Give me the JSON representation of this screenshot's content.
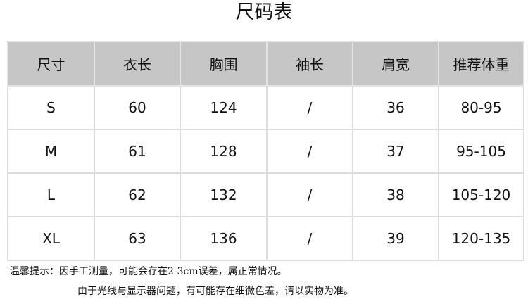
{
  "title": "尺码表",
  "table": {
    "headers": [
      "尺寸",
      "衣长",
      "胸围",
      "袖长",
      "肩宽",
      "推荐体重"
    ],
    "rows": [
      [
        "S",
        "60",
        "124",
        "/",
        "36",
        "80-95"
      ],
      [
        "M",
        "61",
        "128",
        "/",
        "37",
        "95-105"
      ],
      [
        "L",
        "62",
        "132",
        "/",
        "38",
        "105-120"
      ],
      [
        "XL",
        "63",
        "136",
        "/",
        "39",
        "120-135"
      ]
    ]
  },
  "notes": [
    "温馨提示：因手工测量，可能会存在2-3cm误差，属正常情况。",
    "由于光线与显示器问题，有可能存在细微色差，请以实物为准。"
  ]
}
